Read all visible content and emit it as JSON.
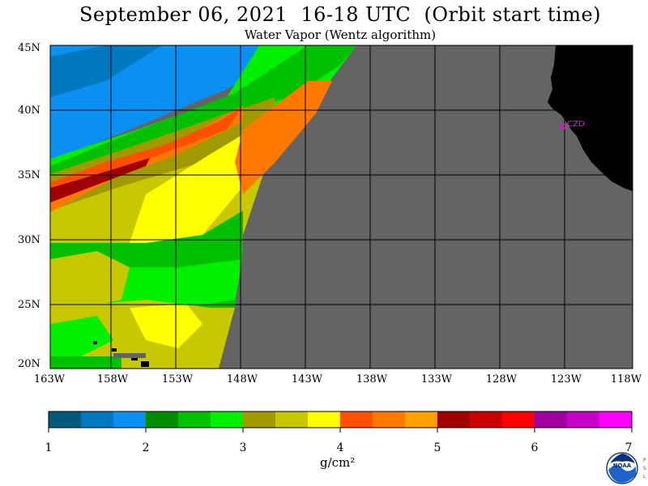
{
  "header": {
    "title": "September 06, 2021  16-18 UTC  (Orbit start time)",
    "subtitle": "Water Vapor (Wentz algorithm)"
  },
  "axes": {
    "lat_labels": [
      "45N",
      "40N",
      "35N",
      "30N",
      "25N",
      "20N"
    ],
    "lon_labels": [
      "163W",
      "158W",
      "153W",
      "148W",
      "143W",
      "138W",
      "133W",
      "128W",
      "123W",
      "118W"
    ]
  },
  "station": {
    "label": "CZD",
    "color": "#ff00ff"
  },
  "colorbar": {
    "ticks": [
      "1",
      "2",
      "3",
      "4",
      "5",
      "6",
      "7"
    ],
    "unit": "g/cm²",
    "colors": [
      "#005a7a",
      "#0078c0",
      "#0a90f0",
      "#008c00",
      "#00c000",
      "#00f000",
      "#a09a00",
      "#c8c800",
      "#ffff00",
      "#ff5000",
      "#ff7800",
      "#ffa000",
      "#a00000",
      "#c80000",
      "#ff0000",
      "#a000a0",
      "#c800c8",
      "#ff00ff"
    ]
  },
  "logo": {
    "text": "NOAA",
    "side_letters": "P S L"
  },
  "colors": {
    "nodata": "#646464",
    "land": "#000000",
    "grid": "#000000"
  }
}
